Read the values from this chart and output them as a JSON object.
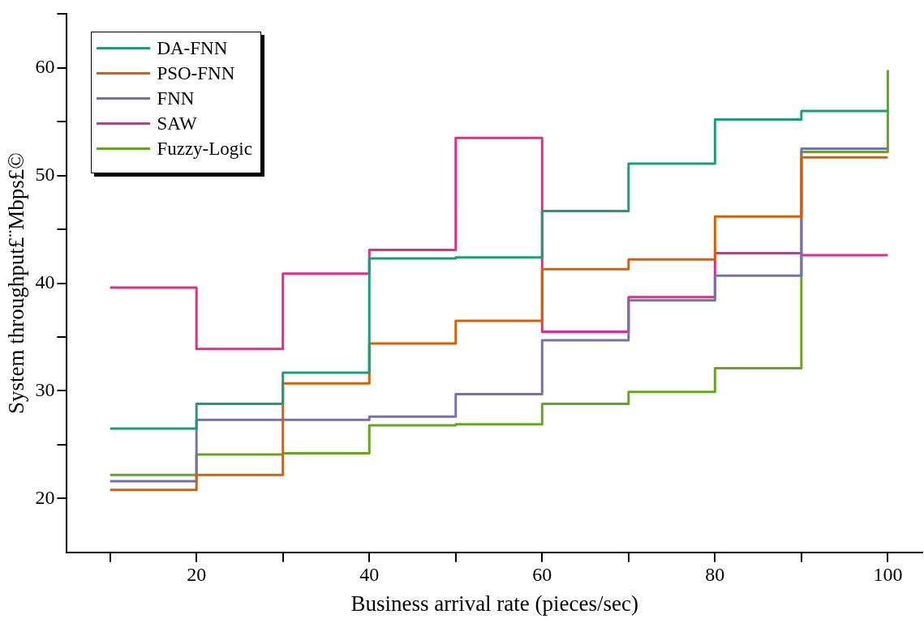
{
  "chart_data": {
    "type": "step",
    "xlabel": "Business arrival rate (pieces/sec)",
    "ylabel": "System throughput£¨Mbps£©",
    "x": [
      10,
      20,
      30,
      40,
      50,
      60,
      70,
      80,
      90,
      100
    ],
    "series": [
      {
        "name": "DA-FNN",
        "color": "#1b9e77",
        "values": [
          26.5,
          28.8,
          31.7,
          42.3,
          42.4,
          46.7,
          51.1,
          55.2,
          56.0,
          56.0
        ]
      },
      {
        "name": "PSO-FNN",
        "color": "#d95f02",
        "values": [
          20.8,
          22.2,
          30.7,
          34.4,
          36.5,
          41.3,
          42.2,
          46.2,
          51.7,
          51.7
        ]
      },
      {
        "name": "FNN",
        "color": "#7570b3",
        "values": [
          21.6,
          27.3,
          27.3,
          27.6,
          29.7,
          34.7,
          38.4,
          40.7,
          52.5,
          52.5
        ]
      },
      {
        "name": "SAW",
        "color": "#e7298a",
        "values": [
          39.6,
          33.9,
          40.9,
          43.1,
          53.5,
          35.5,
          38.7,
          42.8,
          42.6,
          42.6
        ]
      },
      {
        "name": "Fuzzy-Logic",
        "color": "#66a61e",
        "values": [
          22.2,
          24.1,
          24.2,
          26.8,
          26.9,
          28.8,
          29.9,
          32.1,
          52.2,
          59.8
        ]
      }
    ],
    "xlim": [
      5,
      104
    ],
    "xticks": [
      {
        "value": 10,
        "label": null
      },
      20,
      {
        "value": 30,
        "label": null
      },
      40,
      {
        "value": 50,
        "label": null
      },
      60,
      {
        "value": 70,
        "label": null
      },
      80,
      {
        "value": 90,
        "label": null
      },
      100
    ],
    "ylim": [
      15,
      65
    ],
    "yticks": [
      20,
      {
        "value": 25,
        "label": null
      },
      30,
      {
        "value": 35,
        "label": null
      },
      40,
      {
        "value": 45,
        "label": null
      },
      50,
      {
        "value": 55,
        "label": null
      },
      60,
      {
        "value": 65,
        "label": null
      }
    ],
    "grid": false,
    "legend": "top left",
    "line_style": "solid",
    "marker": "none"
  }
}
